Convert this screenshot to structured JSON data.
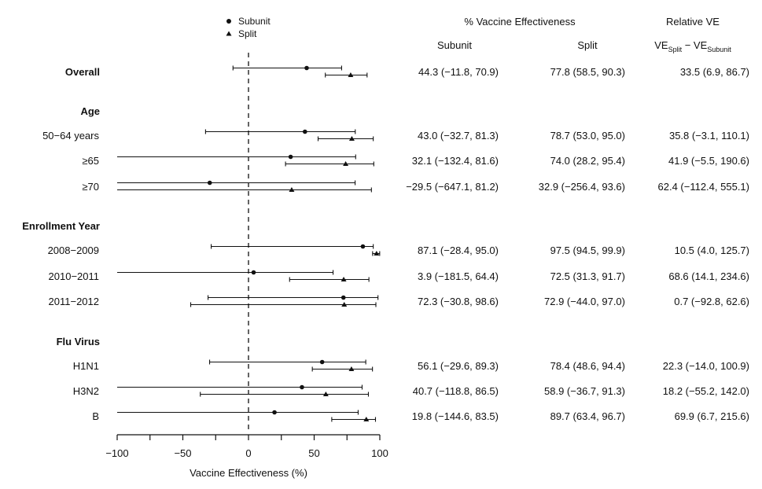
{
  "chart_data": {
    "type": "forest",
    "xlabel": "Vaccine Effectiveness (%)",
    "xlim": [
      -100,
      100
    ],
    "xticks": [
      "−100",
      "−50",
      "0",
      "50",
      "100"
    ],
    "reference_line": 0,
    "legend": {
      "placement": "top-center",
      "entries": [
        {
          "name": "Subunit",
          "marker": "circle"
        },
        {
          "name": "Split",
          "marker": "triangle"
        }
      ]
    },
    "columns": {
      "group_title": "% Vaccine Effectiveness",
      "subunit": "Subunit",
      "split": "Split",
      "relative_title": "Relative VE",
      "relative_formula": {
        "base": "VE",
        "sub1": "Split",
        "dash": " − ",
        "base2": "VE",
        "sub2": "Subunit"
      }
    },
    "rows": [
      {
        "label": "Overall",
        "bold": true,
        "subunit": {
          "est": 44.3,
          "lo": -11.8,
          "hi": 70.9
        },
        "split": {
          "est": 77.8,
          "lo": 58.5,
          "hi": 90.3
        },
        "text_subunit": "44.3 (−11.8, 70.9)",
        "text_split": "77.8 (58.5, 90.3)",
        "text_relative": "33.5 (6.9, 86.7)"
      },
      {
        "label": "Age",
        "bold": true,
        "header": true
      },
      {
        "label": "50−64 years",
        "bold": false,
        "subunit": {
          "est": 43.0,
          "lo": -32.7,
          "hi": 81.3
        },
        "split": {
          "est": 78.7,
          "lo": 53.0,
          "hi": 95.0
        },
        "text_subunit": "43.0 (−32.7, 81.3)",
        "text_split": "78.7 (53.0, 95.0)",
        "text_relative": "35.8 (−3.1, 110.1)"
      },
      {
        "label": "≥65",
        "bold": false,
        "subunit": {
          "est": 32.1,
          "lo": -132.4,
          "hi": 81.6
        },
        "split": {
          "est": 74.0,
          "lo": 28.2,
          "hi": 95.4
        },
        "text_subunit": "32.1 (−132.4, 81.6)",
        "text_split": "74.0 (28.2, 95.4)",
        "text_relative": "41.9 (−5.5, 190.6)"
      },
      {
        "label": "≥70",
        "bold": false,
        "subunit": {
          "est": -29.5,
          "lo": -647.1,
          "hi": 81.2
        },
        "split": {
          "est": 32.9,
          "lo": -256.4,
          "hi": 93.6
        },
        "text_subunit": "−29.5 (−647.1, 81.2)",
        "text_split": "32.9 (−256.4, 93.6)",
        "text_relative": "62.4 (−112.4, 555.1)"
      },
      {
        "label": "Enrollment Year",
        "bold": true,
        "header": true
      },
      {
        "label": "2008−2009",
        "bold": false,
        "subunit": {
          "est": 87.1,
          "lo": -28.4,
          "hi": 95.0
        },
        "split": {
          "est": 97.5,
          "lo": 94.5,
          "hi": 99.9
        },
        "text_subunit": "87.1 (−28.4, 95.0)",
        "text_split": "97.5 (94.5, 99.9)",
        "text_relative": "10.5 (4.0, 125.7)"
      },
      {
        "label": "2010−2011",
        "bold": false,
        "subunit": {
          "est": 3.9,
          "lo": -181.5,
          "hi": 64.4
        },
        "split": {
          "est": 72.5,
          "lo": 31.3,
          "hi": 91.7
        },
        "text_subunit": "3.9 (−181.5, 64.4)",
        "text_split": "72.5 (31.3, 91.7)",
        "text_relative": "68.6 (14.1, 234.6)"
      },
      {
        "label": "2011−2012",
        "bold": false,
        "subunit": {
          "est": 72.3,
          "lo": -30.8,
          "hi": 98.6
        },
        "split": {
          "est": 72.9,
          "lo": -44.0,
          "hi": 97.0
        },
        "text_subunit": "72.3 (−30.8, 98.6)",
        "text_split": "72.9 (−44.0, 97.0)",
        "text_relative": "0.7 (−92.8, 62.6)"
      },
      {
        "label": "Flu Virus",
        "bold": true,
        "header": true
      },
      {
        "label": "H1N1",
        "bold": false,
        "subunit": {
          "est": 56.1,
          "lo": -29.6,
          "hi": 89.3
        },
        "split": {
          "est": 78.4,
          "lo": 48.6,
          "hi": 94.4
        },
        "text_subunit": "56.1 (−29.6, 89.3)",
        "text_split": "78.4 (48.6, 94.4)",
        "text_relative": "22.3 (−14.0, 100.9)"
      },
      {
        "label": "H3N2",
        "bold": false,
        "subunit": {
          "est": 40.7,
          "lo": -118.8,
          "hi": 86.5
        },
        "split": {
          "est": 58.9,
          "lo": -36.7,
          "hi": 91.3
        },
        "text_subunit": "40.7 (−118.8, 86.5)",
        "text_split": "58.9 (−36.7, 91.3)",
        "text_relative": "18.2 (−55.2, 142.0)"
      },
      {
        "label": "B",
        "bold": false,
        "subunit": {
          "est": 19.8,
          "lo": -144.6,
          "hi": 83.5
        },
        "split": {
          "est": 89.7,
          "lo": 63.4,
          "hi": 96.7
        },
        "text_subunit": "19.8 (−144.6, 83.5)",
        "text_split": "89.7 (63.4, 96.7)",
        "text_relative": "69.9 (6.7, 215.6)"
      }
    ]
  }
}
